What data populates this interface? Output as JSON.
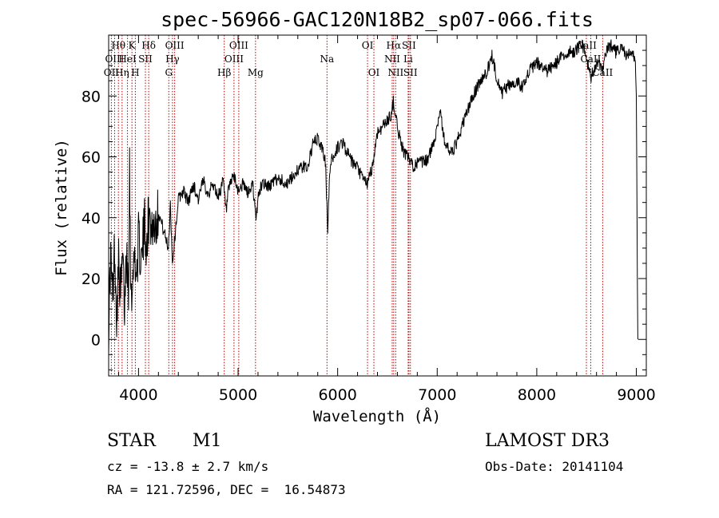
{
  "chart_data": {
    "type": "line",
    "title": "spec-56966-GAC120N18B2_sp07-066.fits",
    "xlabel": "Wavelength (Å)",
    "ylabel": "Flux (relative)",
    "xlim": [
      3700,
      9100
    ],
    "ylim": [
      -12,
      100
    ],
    "x_ticks": [
      4000,
      5000,
      6000,
      7000,
      8000,
      9000
    ],
    "y_ticks": [
      0,
      20,
      40,
      60,
      80
    ],
    "series": [
      {
        "name": "flux",
        "points": [
          [
            3700,
            4
          ],
          [
            3720,
            28
          ],
          [
            3740,
            12
          ],
          [
            3760,
            31
          ],
          [
            3780,
            8
          ],
          [
            3800,
            25
          ],
          [
            3820,
            14
          ],
          [
            3840,
            27
          ],
          [
            3860,
            10
          ],
          [
            3880,
            30
          ],
          [
            3900,
            18
          ],
          [
            3910,
            60
          ],
          [
            3920,
            22
          ],
          [
            3940,
            15
          ],
          [
            3960,
            30
          ],
          [
            3980,
            20
          ],
          [
            4000,
            33
          ],
          [
            4030,
            25
          ],
          [
            4060,
            38
          ],
          [
            4080,
            32
          ],
          [
            4100,
            40
          ],
          [
            4150,
            37
          ],
          [
            4200,
            42
          ],
          [
            4250,
            36
          ],
          [
            4300,
            30
          ],
          [
            4320,
            45
          ],
          [
            4340,
            25
          ],
          [
            4400,
            46
          ],
          [
            4450,
            49
          ],
          [
            4500,
            45
          ],
          [
            4550,
            51
          ],
          [
            4600,
            46
          ],
          [
            4650,
            52
          ],
          [
            4700,
            48
          ],
          [
            4750,
            51
          ],
          [
            4800,
            47
          ],
          [
            4850,
            52
          ],
          [
            4880,
            42
          ],
          [
            4900,
            48
          ],
          [
            4950,
            54
          ],
          [
            5000,
            49
          ],
          [
            5050,
            51
          ],
          [
            5100,
            48
          ],
          [
            5150,
            51
          ],
          [
            5180,
            38
          ],
          [
            5200,
            47
          ],
          [
            5250,
            52
          ],
          [
            5300,
            50
          ],
          [
            5400,
            53
          ],
          [
            5500,
            51
          ],
          [
            5600,
            56
          ],
          [
            5700,
            57
          ],
          [
            5750,
            64
          ],
          [
            5800,
            66
          ],
          [
            5850,
            62
          ],
          [
            5880,
            58
          ],
          [
            5900,
            34
          ],
          [
            5920,
            56
          ],
          [
            5950,
            60
          ],
          [
            6000,
            63
          ],
          [
            6050,
            65
          ],
          [
            6100,
            61
          ],
          [
            6150,
            58
          ],
          [
            6200,
            56
          ],
          [
            6250,
            53
          ],
          [
            6300,
            51
          ],
          [
            6350,
            57
          ],
          [
            6400,
            68
          ],
          [
            6450,
            70
          ],
          [
            6500,
            72
          ],
          [
            6540,
            74
          ],
          [
            6563,
            79
          ],
          [
            6580,
            73
          ],
          [
            6620,
            67
          ],
          [
            6660,
            62
          ],
          [
            6700,
            60
          ],
          [
            6750,
            57
          ],
          [
            6800,
            58
          ],
          [
            6850,
            58
          ],
          [
            6900,
            59
          ],
          [
            6950,
            63
          ],
          [
            7000,
            70
          ],
          [
            7030,
            76
          ],
          [
            7060,
            67
          ],
          [
            7100,
            63
          ],
          [
            7150,
            61
          ],
          [
            7200,
            65
          ],
          [
            7300,
            75
          ],
          [
            7400,
            83
          ],
          [
            7500,
            88
          ],
          [
            7550,
            93
          ],
          [
            7600,
            86
          ],
          [
            7650,
            81
          ],
          [
            7700,
            83
          ],
          [
            7800,
            85
          ],
          [
            7850,
            83
          ],
          [
            7900,
            87
          ],
          [
            7950,
            89
          ],
          [
            8000,
            91
          ],
          [
            8100,
            88
          ],
          [
            8200,
            91
          ],
          [
            8300,
            94
          ],
          [
            8400,
            95
          ],
          [
            8450,
            98
          ],
          [
            8500,
            92
          ],
          [
            8542,
            86
          ],
          [
            8600,
            91
          ],
          [
            8662,
            88
          ],
          [
            8700,
            95
          ],
          [
            8750,
            97
          ],
          [
            8800,
            94
          ],
          [
            8850,
            96
          ],
          [
            8900,
            93
          ],
          [
            8950,
            94
          ],
          [
            8990,
            92
          ],
          [
            9000,
            80
          ],
          [
            9010,
            20
          ],
          [
            9015,
            0
          ]
        ]
      }
    ],
    "line_markers": [
      {
        "label": "OII",
        "wave": 3727,
        "row": 2
      },
      {
        "label": "Hθ",
        "wave": 3798,
        "row": 0
      },
      {
        "label": "OIII",
        "wave": 3760,
        "row": 1
      },
      {
        "label": "Hη",
        "wave": 3835,
        "row": 2
      },
      {
        "label": "HeI",
        "wave": 3889,
        "row": 1
      },
      {
        "label": "K",
        "wave": 3934,
        "row": 0
      },
      {
        "label": "H",
        "wave": 3968,
        "row": 2
      },
      {
        "label": "SII",
        "wave": 4069,
        "row": 1
      },
      {
        "label": "Hδ",
        "wave": 4102,
        "row": 0
      },
      {
        "label": "G",
        "wave": 4304,
        "row": 2
      },
      {
        "label": "OIII",
        "wave": 4363,
        "row": 0
      },
      {
        "label": "Hγ",
        "wave": 4341,
        "row": 1
      },
      {
        "label": "Hβ",
        "wave": 4861,
        "row": 2
      },
      {
        "label": "OIII",
        "wave": 5007,
        "row": 0
      },
      {
        "label": "OIII",
        "wave": 4959,
        "row": 1
      },
      {
        "label": "Mg",
        "wave": 5175,
        "row": 2
      },
      {
        "label": "Na",
        "wave": 5893,
        "row": 1
      },
      {
        "label": "OI",
        "wave": 6300,
        "row": 0
      },
      {
        "label": "OI",
        "wave": 6364,
        "row": 2
      },
      {
        "label": "Hα",
        "wave": 6563,
        "row": 0
      },
      {
        "label": "NII",
        "wave": 6548,
        "row": 1
      },
      {
        "label": "NII",
        "wave": 6583,
        "row": 2
      },
      {
        "label": "SII",
        "wave": 6716,
        "row": 0
      },
      {
        "label": "Li",
        "wave": 6708,
        "row": 1
      },
      {
        "label": "SII",
        "wave": 6731,
        "row": 2
      },
      {
        "label": "CaII",
        "wave": 8498,
        "row": 0
      },
      {
        "label": "CaII",
        "wave": 8542,
        "row": 1
      },
      {
        "label": "CaII",
        "wave": 8662,
        "row": 2
      }
    ]
  },
  "info": {
    "object_class": "STAR",
    "subclass": "M1",
    "survey": "LAMOST DR3",
    "redshift_line": "cz = -13.8 ± 2.7 km/s",
    "obs_date_line": "Obs-Date: 20141104",
    "coords_line": "RA = 121.72596, DEC =  16.54873"
  }
}
